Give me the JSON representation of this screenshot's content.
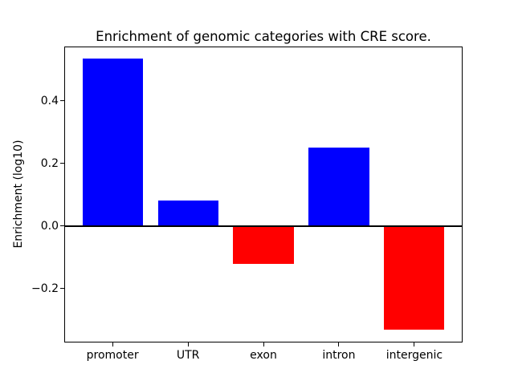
{
  "figure": {
    "background_color": "#ffffff"
  },
  "chart_data": {
    "type": "bar",
    "title": "Enrichment of genomic categories with CRE score.",
    "xlabel": "",
    "ylabel": "Enrichment (log10)",
    "categories": [
      "promoter",
      "UTR",
      "exon",
      "intron",
      "intergenic"
    ],
    "values": [
      0.534,
      0.082,
      -0.121,
      0.249,
      -0.333
    ],
    "bar_colors": [
      "#0000ff",
      "#0000ff",
      "#ff0000",
      "#0000ff",
      "#ff0000"
    ],
    "positive_color": "#0000ff",
    "negative_color": "#ff0000",
    "yticks": [
      -0.2,
      0.0,
      0.2,
      0.4
    ],
    "ytick_labels": [
      "−0.2",
      "0.0",
      "0.2",
      "0.4"
    ],
    "ylim": [
      -0.373,
      0.573
    ],
    "zero_line": true,
    "zero_line_color": "#000000",
    "grid": false,
    "legend": null
  }
}
